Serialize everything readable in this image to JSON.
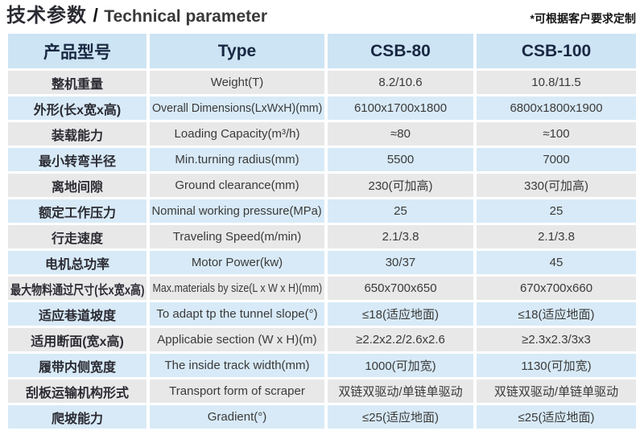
{
  "header": {
    "title_zh": "技术参数",
    "title_sep": "/",
    "title_en": "Technical parameter",
    "note": "*可根据客户要求定制"
  },
  "table": {
    "headers": [
      "产品型号",
      "Type",
      "CSB-80",
      "CSB-100"
    ],
    "rows": [
      {
        "name_zh": "整机重量",
        "type_en": "Weight(T)",
        "csb80": "8.2/10.6",
        "csb100": "10.8/11.5"
      },
      {
        "name_zh": "外形(长x宽x高)",
        "type_en": "Overall Dimensions(LxWxH)(mm)",
        "csb80": "6100x1700x1800",
        "csb100": "6800x1800x1900"
      },
      {
        "name_zh": "装载能力",
        "type_en": "Loading Capacity(m³/h)",
        "csb80": "≈80",
        "csb100": "≈100"
      },
      {
        "name_zh": "最小转弯半径",
        "type_en": "Min.turning radius(mm)",
        "csb80": "5500",
        "csb100": "7000"
      },
      {
        "name_zh": "离地间隙",
        "type_en": "Ground clearance(mm)",
        "csb80": "230(可加高)",
        "csb100": "330(可加高)"
      },
      {
        "name_zh": "额定工作压力",
        "type_en": "Nominal working pressure(MPa)",
        "csb80": "25",
        "csb100": "25"
      },
      {
        "name_zh": "行走速度",
        "type_en": "Traveling Speed(m/min)",
        "csb80": "2.1/3.8",
        "csb100": "2.1/3.8"
      },
      {
        "name_zh": "电机总功率",
        "type_en": "Motor Power(kw)",
        "csb80": "30/37",
        "csb100": "45"
      },
      {
        "name_zh": "最大物料通过尺寸(长x宽x高)",
        "type_en": "Max.materials by size(L x W x H)(mm)",
        "csb80": "650x700x650",
        "csb100": "670x700x660"
      },
      {
        "name_zh": "适应巷道坡度",
        "type_en": "To adapt tp the tunnel slope(°)",
        "csb80": "≤18(适应地面)",
        "csb100": "≤18(适应地面)"
      },
      {
        "name_zh": "适用断面(宽x高)",
        "type_en": "Applicabie section (W x H)(m)",
        "csb80": "≥2.2x2.2/2.6x2.6",
        "csb100": "≥2.3x2.3/3x3"
      },
      {
        "name_zh": "履带内侧宽度",
        "type_en": "The inside track width(mm)",
        "csb80": "1000(可加宽)",
        "csb100": "1130(可加宽)"
      },
      {
        "name_zh": "刮板运输机构形式",
        "type_en": "Transport form of scraper",
        "csb80": "双链双驱动/单链单驱动",
        "csb100": "双链双驱动/单链单驱动"
      },
      {
        "name_zh": "爬坡能力",
        "type_en": "Gradient(°)",
        "csb80": "≤25(适应地面)",
        "csb100": "≤25(适应地面)"
      }
    ]
  },
  "colors": {
    "header_bg": "#cde4f4",
    "row_blue": "#d8eaf7",
    "row_gray": "#e8e8e9",
    "header_text": "#182842",
    "name_text": "#2b2b33",
    "body_text": "#3a3a3a",
    "title_text": "#141414"
  }
}
